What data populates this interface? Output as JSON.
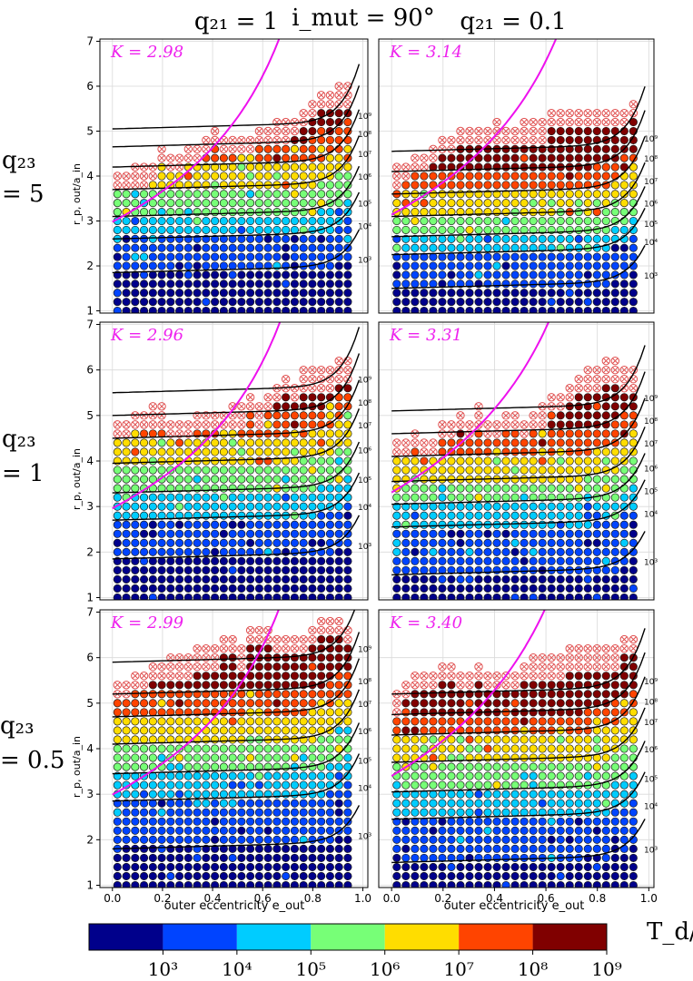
{
  "chart_data": {
    "type": "scatter",
    "column_titles": [
      "q₂₁ = 1",
      "q₂₁ = 0.1"
    ],
    "figure_title": "i_mut = 90°",
    "row_titles_top": [
      "q₂₃",
      "q₂₃",
      "q₂₃"
    ],
    "row_titles_bottom": [
      "= 5",
      "= 1",
      "= 0.5"
    ],
    "ylabel": "r_p, out/a_in",
    "xlabel": "outer eccentricity e_out",
    "xlim": [
      -0.05,
      1.02
    ],
    "ylim": [
      0.95,
      7.05
    ],
    "x_ticks": [
      0.0,
      0.2,
      0.4,
      0.6,
      0.8,
      1.0
    ],
    "x_tick_labels": [
      "0.0",
      "0.2",
      "0.4",
      "0.6",
      "0.8",
      "1.0"
    ],
    "y_ticks": [
      1,
      2,
      3,
      4,
      5,
      6,
      7
    ],
    "y_tick_labels": [
      "1",
      "2",
      "3",
      "4",
      "5",
      "6",
      "7"
    ],
    "grid": true,
    "panels": [
      {
        "row": 0,
        "col": 0,
        "K_label": "K = 2.98",
        "K": 2.98,
        "boundaries": [
          1.85,
          2.6,
          3.1,
          3.7,
          4.2,
          4.65,
          5.05
        ],
        "stable_top": [
          3.7,
          3.7,
          3.7,
          3.8,
          3.8,
          3.9,
          4.2,
          4.0,
          4.0,
          4.3,
          4.3,
          4.4,
          4.6,
          4.4,
          4.4,
          4.4,
          4.4,
          4.4,
          4.6,
          4.6,
          4.8,
          4.8,
          4.9,
          5.0,
          5.2,
          5.4,
          5.4,
          5.6,
          5.6,
          5.4,
          5.4
        ]
      },
      {
        "row": 0,
        "col": 1,
        "K_label": "K = 3.14",
        "K": 3.14,
        "boundaries": [
          1.5,
          2.25,
          2.65,
          3.1,
          3.6,
          4.1,
          4.55
        ],
        "stable_top": [
          3.6,
          3.8,
          3.9,
          4.0,
          4.1,
          4.2,
          4.4,
          4.4,
          4.6,
          4.7,
          4.6,
          4.6,
          4.8,
          4.6,
          4.6,
          4.8,
          4.8,
          4.8,
          4.8,
          5.0,
          5.0,
          5.0,
          5.0,
          5.0,
          5.0,
          5.0,
          5.0,
          5.0,
          5.2,
          5.2,
          5.2
        ]
      },
      {
        "row": 1,
        "col": 0,
        "K_label": "K = 2.96",
        "K": 2.96,
        "boundaries": [
          1.85,
          2.7,
          3.3,
          3.95,
          4.5,
          5.0,
          5.5
        ],
        "stable_top": [
          4.2,
          4.4,
          4.4,
          4.6,
          4.6,
          4.8,
          4.8,
          4.4,
          4.4,
          4.4,
          4.6,
          4.6,
          4.6,
          4.6,
          4.8,
          4.8,
          4.8,
          5.0,
          4.8,
          5.0,
          5.2,
          5.4,
          5.2,
          5.6,
          5.6,
          5.6,
          5.6,
          5.8,
          5.8,
          5.8,
          5.8
        ]
      },
      {
        "row": 1,
        "col": 1,
        "K_label": "K = 3.31",
        "K": 3.31,
        "boundaries": [
          1.5,
          2.55,
          3.05,
          3.55,
          4.1,
          4.6,
          5.1
        ],
        "stable_top": [
          4.0,
          4.0,
          4.0,
          4.2,
          4.0,
          4.0,
          4.4,
          4.4,
          4.6,
          4.4,
          4.8,
          4.4,
          4.4,
          4.6,
          4.6,
          4.4,
          4.4,
          4.6,
          4.8,
          5.0,
          5.0,
          5.2,
          5.4,
          5.6,
          5.6,
          5.8,
          5.8,
          5.6,
          5.6,
          5.6,
          5.6
        ]
      },
      {
        "row": 2,
        "col": 0,
        "K_label": "K = 2.99",
        "K": 2.99,
        "boundaries": [
          1.8,
          2.85,
          3.45,
          4.1,
          4.7,
          5.2,
          5.9
        ],
        "stable_top": [
          5.0,
          5.0,
          5.0,
          5.2,
          5.2,
          5.4,
          5.4,
          5.6,
          5.6,
          5.6,
          5.8,
          5.8,
          5.8,
          6.0,
          6.0,
          5.8,
          5.8,
          6.2,
          6.2,
          6.2,
          6.0,
          6.0,
          6.0,
          6.0,
          6.2,
          6.4,
          6.4,
          6.4,
          6.2,
          6.2,
          6.2
        ]
      },
      {
        "row": 2,
        "col": 1,
        "K_label": "K = 3.40",
        "K": 3.4,
        "boundaries": [
          1.5,
          2.45,
          3.05,
          3.7,
          4.3,
          4.75,
          5.2
        ],
        "stable_top": [
          4.6,
          4.8,
          5.0,
          5.2,
          5.2,
          5.2,
          5.4,
          5.4,
          5.2,
          5.2,
          5.4,
          5.2,
          5.2,
          5.2,
          5.2,
          5.4,
          5.4,
          5.6,
          5.6,
          5.6,
          5.6,
          5.8,
          5.8,
          5.8,
          5.8,
          5.8,
          5.8,
          6.0,
          6.0,
          6.0,
          6.0
        ]
      }
    ],
    "e_values": [
      0.0,
      0.033,
      0.067,
      0.1,
      0.133,
      0.167,
      0.2,
      0.233,
      0.267,
      0.3,
      0.333,
      0.367,
      0.4,
      0.433,
      0.467,
      0.5,
      0.533,
      0.567,
      0.6,
      0.633,
      0.667,
      0.7,
      0.733,
      0.767,
      0.8,
      0.833,
      0.867,
      0.9,
      0.933,
      0.967,
      1.0
    ],
    "boundary_labels": [
      "10³",
      "10⁴",
      "10⁵",
      "10⁶",
      "10⁷",
      "10⁸",
      "10⁹"
    ],
    "colorbar": {
      "label": "T_d/P_in",
      "ticks": [
        "10³",
        "10⁴",
        "10⁵",
        "10⁶",
        "10⁷",
        "10⁸",
        "10⁹"
      ],
      "colors": [
        "#00008b",
        "#0044ff",
        "#00ccff",
        "#77ff77",
        "#ffdd00",
        "#ff4400",
        "#800000"
      ]
    },
    "colors": {
      "stability_curve": "#ee11ee",
      "K_label": "#ee22ee",
      "unstable_marker": "#e05050",
      "contour": "#000000"
    }
  }
}
